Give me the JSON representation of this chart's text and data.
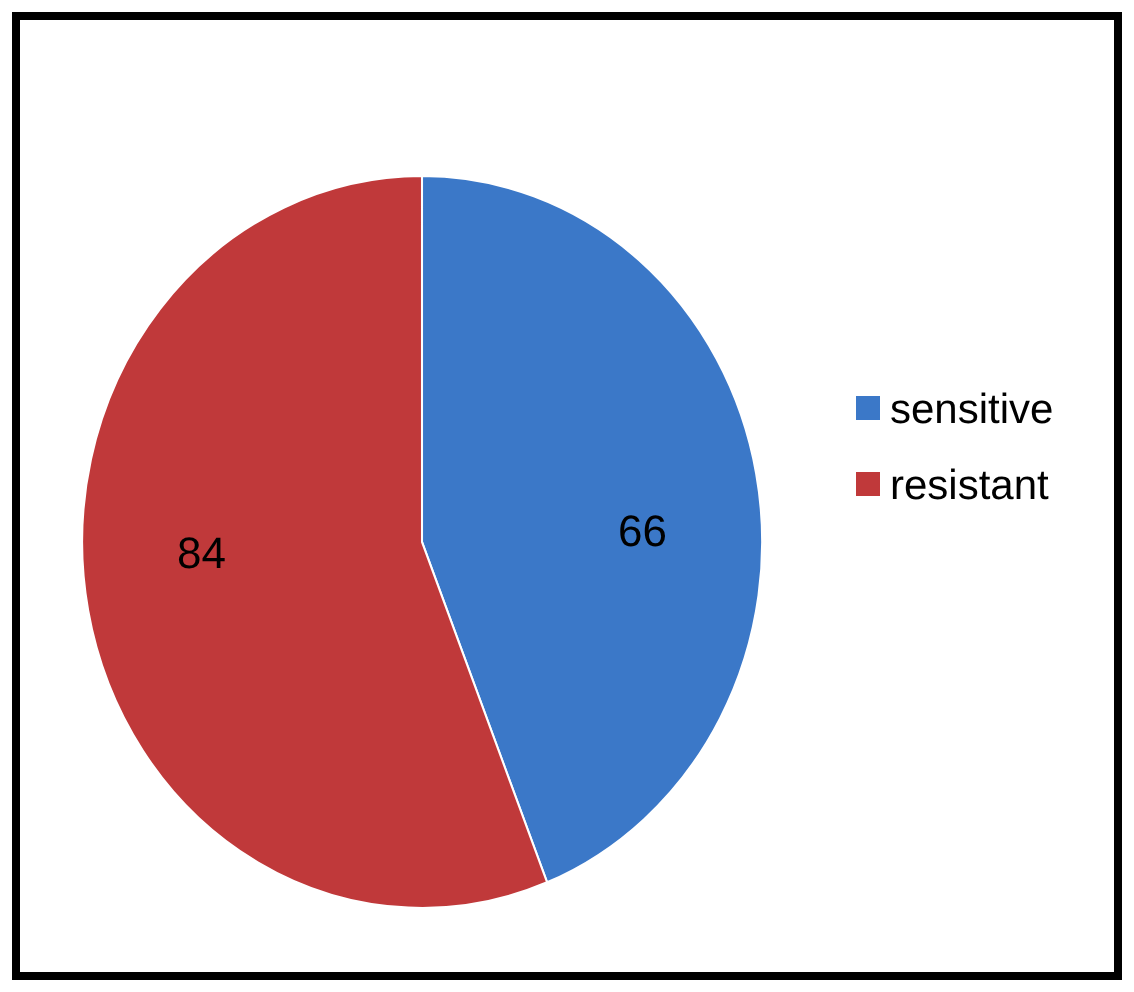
{
  "chart_data": {
    "type": "pie",
    "categories": [
      "sensitive",
      "resistant"
    ],
    "values": [
      66,
      84
    ],
    "colors": [
      "#3b78c8",
      "#c0393a"
    ],
    "data_labels": true,
    "legend": "right"
  }
}
